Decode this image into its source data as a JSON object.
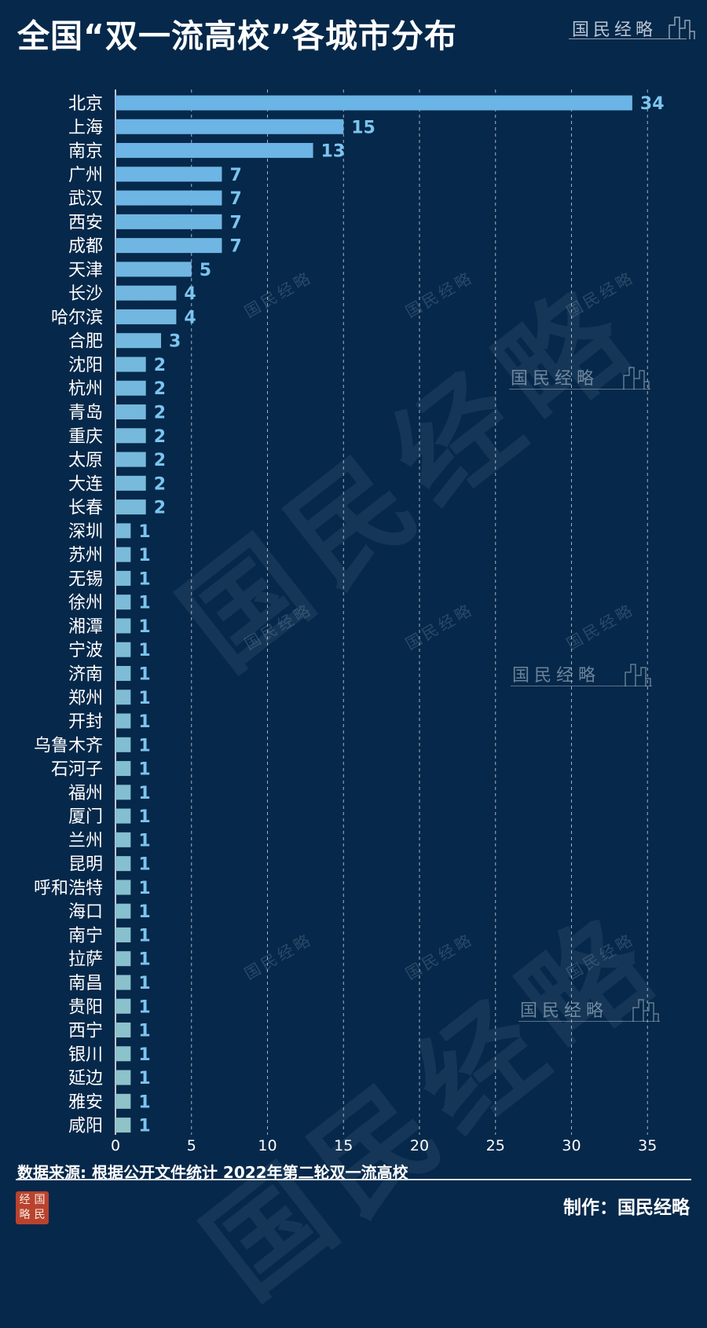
{
  "title": "全国“双一流高校”各城市分布",
  "watermark": {
    "brand": "国民经略",
    "seal_chars": [
      "经",
      "国",
      "略",
      "民"
    ]
  },
  "source": "数据来源: 根据公开文件统计 2022年第二轮双一流高校",
  "credit": "制作：国民经略",
  "colors": {
    "background": "#06284a",
    "bar_top": "#6ab4e6",
    "bar_bottom": "#8fc3c8",
    "label_text": "#ffffff",
    "value_text": "#7cc4ef",
    "grid": "#c9d6e2"
  },
  "chart_data": {
    "type": "bar",
    "orientation": "horizontal",
    "categories": [
      "北京",
      "上海",
      "南京",
      "广州",
      "武汉",
      "西安",
      "成都",
      "天津",
      "长沙",
      "哈尔滨",
      "合肥",
      "沈阳",
      "杭州",
      "青岛",
      "重庆",
      "太原",
      "大连",
      "长春",
      "深圳",
      "苏州",
      "无锡",
      "徐州",
      "湘潭",
      "宁波",
      "济南",
      "郑州",
      "开封",
      "乌鲁木齐",
      "石河子",
      "福州",
      "厦门",
      "兰州",
      "昆明",
      "呼和浩特",
      "海口",
      "南宁",
      "拉萨",
      "南昌",
      "贵阳",
      "西宁",
      "银川",
      "延边",
      "雅安",
      "咸阳"
    ],
    "values": [
      34,
      15,
      13,
      7,
      7,
      7,
      7,
      5,
      4,
      4,
      3,
      2,
      2,
      2,
      2,
      2,
      2,
      2,
      1,
      1,
      1,
      1,
      1,
      1,
      1,
      1,
      1,
      1,
      1,
      1,
      1,
      1,
      1,
      1,
      1,
      1,
      1,
      1,
      1,
      1,
      1,
      1,
      1,
      1
    ],
    "x_ticks": [
      "0",
      "5",
      "10",
      "15",
      "20",
      "25",
      "30",
      "35"
    ],
    "xlim": [
      0,
      35
    ],
    "grid": "vertical dashed",
    "data_labels": true
  }
}
